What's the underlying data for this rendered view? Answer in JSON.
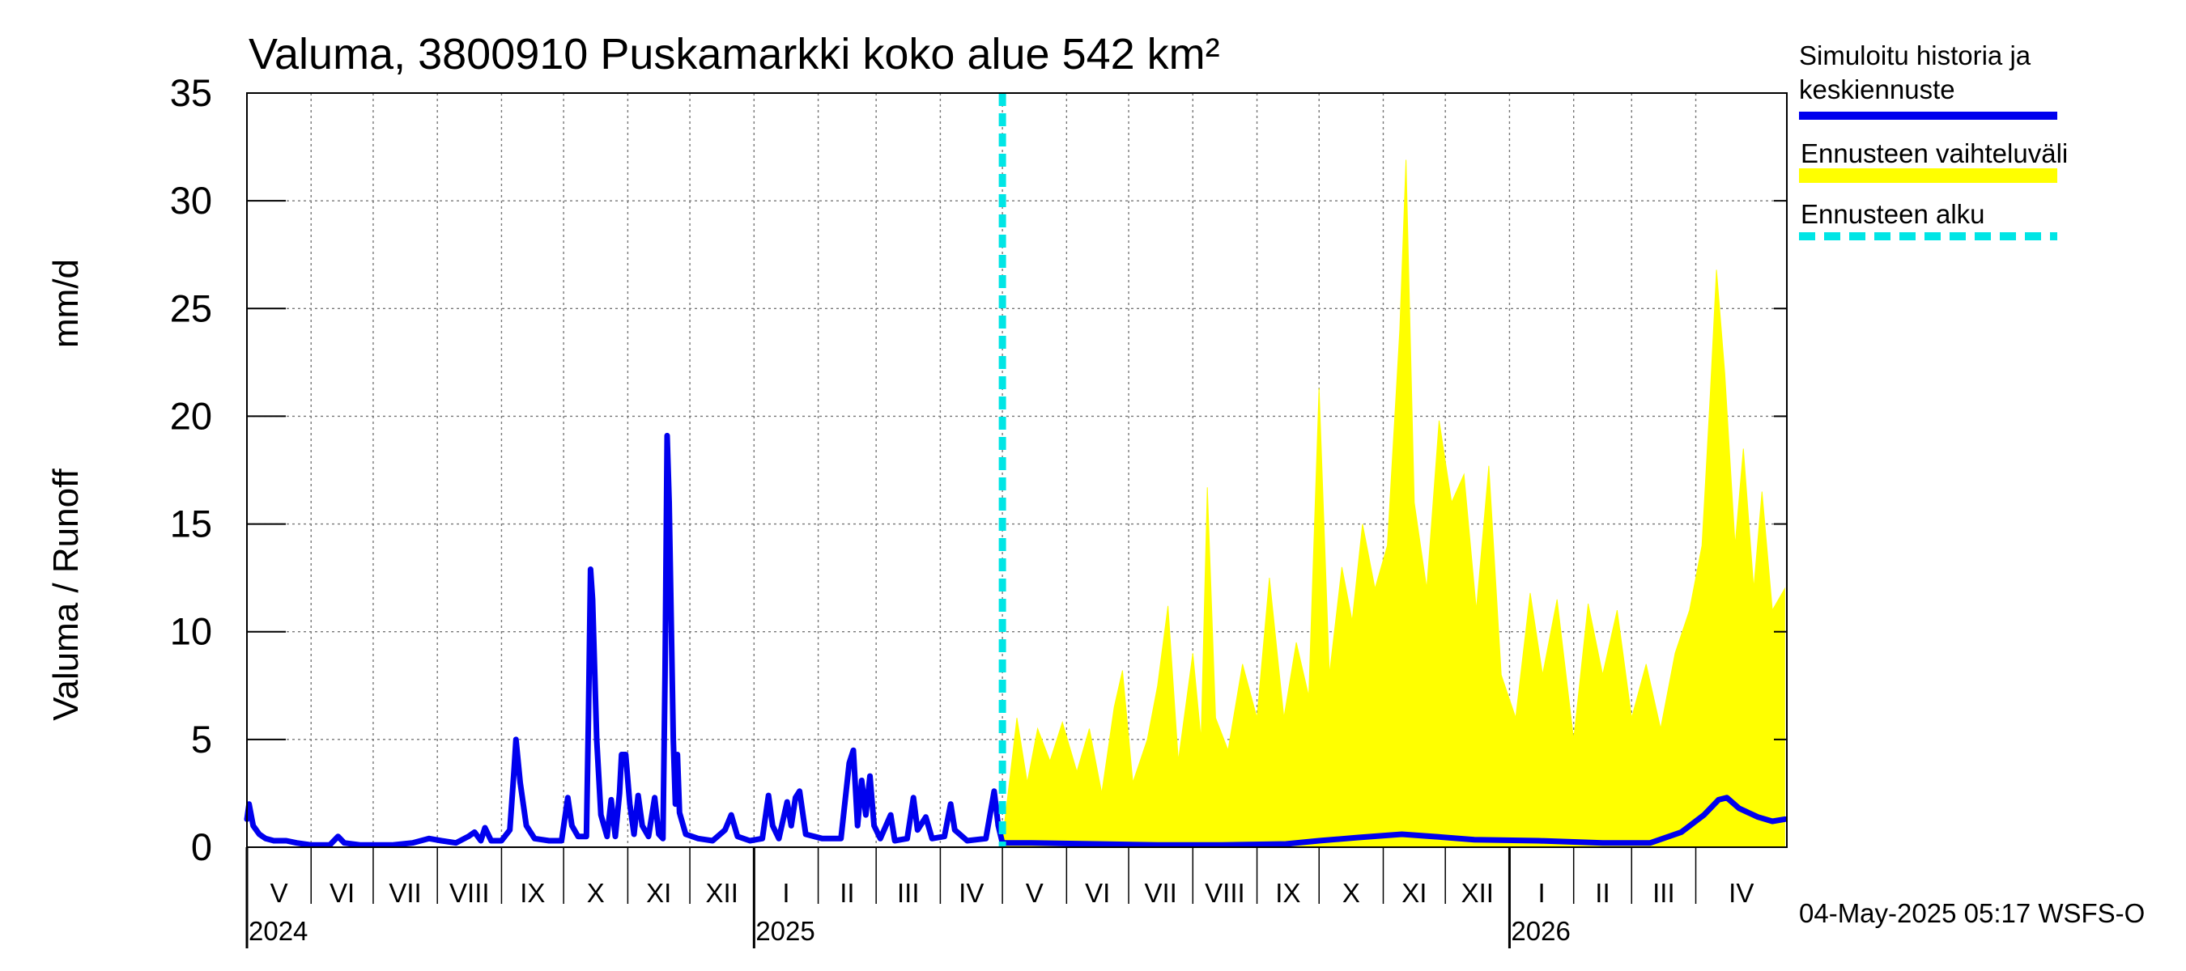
{
  "chart_data": {
    "type": "line",
    "title": "Valuma, 3800910 Puskamarkki koko alue 542 km²",
    "ylabel_fi": "Valuma / Runoff",
    "ylabel_unit": "mm/d",
    "ylim": [
      0,
      35
    ],
    "yticks": [
      0,
      5,
      10,
      15,
      20,
      25,
      30,
      35
    ],
    "xlim": [
      "2024-05-01",
      "2026-05-15"
    ],
    "grid": true,
    "months": [
      {
        "label": "V",
        "start": "2024-05-01"
      },
      {
        "label": "VI",
        "start": "2024-06-01"
      },
      {
        "label": "VII",
        "start": "2024-07-01"
      },
      {
        "label": "VIII",
        "start": "2024-08-01"
      },
      {
        "label": "IX",
        "start": "2024-09-01"
      },
      {
        "label": "X",
        "start": "2024-10-01"
      },
      {
        "label": "XI",
        "start": "2024-11-01"
      },
      {
        "label": "XII",
        "start": "2024-12-01"
      },
      {
        "label": "I",
        "start": "2025-01-01"
      },
      {
        "label": "II",
        "start": "2025-02-01"
      },
      {
        "label": "III",
        "start": "2025-03-01"
      },
      {
        "label": "IV",
        "start": "2025-04-01"
      },
      {
        "label": "V",
        "start": "2025-05-01"
      },
      {
        "label": "VI",
        "start": "2025-06-01"
      },
      {
        "label": "VII",
        "start": "2025-07-01"
      },
      {
        "label": "VIII",
        "start": "2025-08-01"
      },
      {
        "label": "IX",
        "start": "2025-09-01"
      },
      {
        "label": "X",
        "start": "2025-10-01"
      },
      {
        "label": "XI",
        "start": "2025-11-01"
      },
      {
        "label": "XII",
        "start": "2025-12-01"
      },
      {
        "label": "I",
        "start": "2026-01-01"
      },
      {
        "label": "II",
        "start": "2026-02-01"
      },
      {
        "label": "III",
        "start": "2026-03-01"
      },
      {
        "label": "IV",
        "start": "2026-04-01"
      }
    ],
    "years": [
      {
        "label": "2024",
        "date": "2024-05-01"
      },
      {
        "label": "2025",
        "date": "2025-01-01"
      },
      {
        "label": "2026",
        "date": "2026-01-01"
      }
    ],
    "forecast_start": "2025-05-01",
    "legend": {
      "placement": "right",
      "history": "Simuloitu historia ja keskiennuste",
      "range": "Ennusteen vaihteluväli",
      "start": "Ennusteen alku"
    },
    "colors": {
      "history": "#0000ee",
      "range": "#ffff00",
      "start": "#00e5e5"
    },
    "series": [
      {
        "name": "Simuloitu historia ja keskiennuste",
        "points": [
          [
            "2024-05-01",
            1.3
          ],
          [
            "2024-05-02",
            2.0
          ],
          [
            "2024-05-04",
            1.0
          ],
          [
            "2024-05-07",
            0.6
          ],
          [
            "2024-05-10",
            0.4
          ],
          [
            "2024-05-14",
            0.3
          ],
          [
            "2024-05-20",
            0.3
          ],
          [
            "2024-05-25",
            0.2
          ],
          [
            "2024-06-01",
            0.1
          ],
          [
            "2024-06-10",
            0.1
          ],
          [
            "2024-06-14",
            0.5
          ],
          [
            "2024-06-17",
            0.2
          ],
          [
            "2024-06-25",
            0.1
          ],
          [
            "2024-07-10",
            0.1
          ],
          [
            "2024-07-20",
            0.2
          ],
          [
            "2024-07-28",
            0.4
          ],
          [
            "2024-08-03",
            0.3
          ],
          [
            "2024-08-10",
            0.2
          ],
          [
            "2024-08-16",
            0.5
          ],
          [
            "2024-08-19",
            0.7
          ],
          [
            "2024-08-22",
            0.3
          ],
          [
            "2024-08-24",
            0.9
          ],
          [
            "2024-08-27",
            0.3
          ],
          [
            "2024-09-01",
            0.3
          ],
          [
            "2024-09-05",
            0.8
          ],
          [
            "2024-09-07",
            3.5
          ],
          [
            "2024-09-08",
            5.0
          ],
          [
            "2024-09-10",
            3.0
          ],
          [
            "2024-09-13",
            1.0
          ],
          [
            "2024-09-17",
            0.4
          ],
          [
            "2024-09-24",
            0.3
          ],
          [
            "2024-09-30",
            0.3
          ],
          [
            "2024-10-03",
            2.3
          ],
          [
            "2024-10-05",
            1.0
          ],
          [
            "2024-10-08",
            0.5
          ],
          [
            "2024-10-12",
            0.5
          ],
          [
            "2024-10-13",
            6.0
          ],
          [
            "2024-10-14",
            12.9
          ],
          [
            "2024-10-15",
            11.5
          ],
          [
            "2024-10-17",
            5.0
          ],
          [
            "2024-10-19",
            1.5
          ],
          [
            "2024-10-22",
            0.5
          ],
          [
            "2024-10-24",
            2.2
          ],
          [
            "2024-10-26",
            0.5
          ],
          [
            "2024-10-28",
            2.5
          ],
          [
            "2024-10-29",
            4.3
          ],
          [
            "2024-10-31",
            4.3
          ],
          [
            "2024-11-02",
            2.0
          ],
          [
            "2024-11-04",
            0.6
          ],
          [
            "2024-11-06",
            2.4
          ],
          [
            "2024-11-08",
            1.0
          ],
          [
            "2024-11-11",
            0.5
          ],
          [
            "2024-11-14",
            2.3
          ],
          [
            "2024-11-16",
            0.6
          ],
          [
            "2024-11-18",
            0.4
          ],
          [
            "2024-11-19",
            8.0
          ],
          [
            "2024-11-20",
            19.1
          ],
          [
            "2024-11-21",
            16.0
          ],
          [
            "2024-11-23",
            5.0
          ],
          [
            "2024-11-24",
            2.0
          ],
          [
            "2024-11-25",
            4.3
          ],
          [
            "2024-11-26",
            1.6
          ],
          [
            "2024-11-29",
            0.6
          ],
          [
            "2024-12-05",
            0.4
          ],
          [
            "2024-12-12",
            0.3
          ],
          [
            "2024-12-18",
            0.8
          ],
          [
            "2024-12-21",
            1.5
          ],
          [
            "2024-12-24",
            0.5
          ],
          [
            "2024-12-30",
            0.3
          ],
          [
            "2025-01-05",
            0.4
          ],
          [
            "2025-01-08",
            2.4
          ],
          [
            "2025-01-10",
            1.0
          ],
          [
            "2025-01-13",
            0.4
          ],
          [
            "2025-01-17",
            2.1
          ],
          [
            "2025-01-19",
            1.0
          ],
          [
            "2025-01-21",
            2.3
          ],
          [
            "2025-01-23",
            2.6
          ],
          [
            "2025-01-26",
            0.6
          ],
          [
            "2025-02-03",
            0.4
          ],
          [
            "2025-02-12",
            0.4
          ],
          [
            "2025-02-16",
            3.9
          ],
          [
            "2025-02-18",
            4.5
          ],
          [
            "2025-02-20",
            1.0
          ],
          [
            "2025-02-22",
            3.1
          ],
          [
            "2025-02-24",
            1.5
          ],
          [
            "2025-02-26",
            3.3
          ],
          [
            "2025-02-28",
            1.0
          ],
          [
            "2025-03-03",
            0.4
          ],
          [
            "2025-03-08",
            1.5
          ],
          [
            "2025-03-10",
            0.3
          ],
          [
            "2025-03-16",
            0.4
          ],
          [
            "2025-03-19",
            2.3
          ],
          [
            "2025-03-21",
            0.8
          ],
          [
            "2025-03-25",
            1.4
          ],
          [
            "2025-03-28",
            0.4
          ],
          [
            "2025-04-03",
            0.5
          ],
          [
            "2025-04-06",
            2.0
          ],
          [
            "2025-04-08",
            0.8
          ],
          [
            "2025-04-14",
            0.3
          ],
          [
            "2025-04-23",
            0.4
          ],
          [
            "2025-04-27",
            2.6
          ],
          [
            "2025-04-29",
            1.0
          ],
          [
            "2025-05-01",
            0.2
          ],
          [
            "2025-05-15",
            0.2
          ],
          [
            "2025-06-15",
            0.15
          ],
          [
            "2025-07-15",
            0.1
          ],
          [
            "2025-08-15",
            0.1
          ],
          [
            "2025-09-15",
            0.15
          ],
          [
            "2025-10-01",
            0.3
          ],
          [
            "2025-10-20",
            0.45
          ],
          [
            "2025-11-10",
            0.6
          ],
          [
            "2025-11-25",
            0.5
          ],
          [
            "2025-12-15",
            0.35
          ],
          [
            "2026-01-15",
            0.3
          ],
          [
            "2026-02-15",
            0.2
          ],
          [
            "2026-03-10",
            0.2
          ],
          [
            "2026-03-25",
            0.7
          ],
          [
            "2026-04-05",
            1.5
          ],
          [
            "2026-04-12",
            2.2
          ],
          [
            "2026-04-16",
            2.3
          ],
          [
            "2026-04-22",
            1.8
          ],
          [
            "2026-05-01",
            1.4
          ],
          [
            "2026-05-08",
            1.2
          ],
          [
            "2026-05-14",
            1.3
          ]
        ]
      },
      {
        "name": "Ennusteen vaihteluväli",
        "upper_points": [
          [
            "2025-05-01",
            0.3
          ],
          [
            "2025-05-05",
            3.5
          ],
          [
            "2025-05-08",
            6.0
          ],
          [
            "2025-05-13",
            3.0
          ],
          [
            "2025-05-18",
            5.5
          ],
          [
            "2025-05-24",
            4.0
          ],
          [
            "2025-05-30",
            5.8
          ],
          [
            "2025-06-06",
            3.5
          ],
          [
            "2025-06-12",
            5.5
          ],
          [
            "2025-06-18",
            2.5
          ],
          [
            "2025-06-24",
            6.5
          ],
          [
            "2025-06-28",
            8.2
          ],
          [
            "2025-07-03",
            3.0
          ],
          [
            "2025-07-10",
            5.0
          ],
          [
            "2025-07-15",
            7.5
          ],
          [
            "2025-07-20",
            11.2
          ],
          [
            "2025-07-25",
            4.0
          ],
          [
            "2025-08-01",
            9.0
          ],
          [
            "2025-08-05",
            5.0
          ],
          [
            "2025-08-08",
            16.7
          ],
          [
            "2025-08-12",
            6.0
          ],
          [
            "2025-08-18",
            4.5
          ],
          [
            "2025-08-25",
            8.5
          ],
          [
            "2025-09-01",
            6.0
          ],
          [
            "2025-09-07",
            12.5
          ],
          [
            "2025-09-14",
            6.0
          ],
          [
            "2025-09-20",
            9.5
          ],
          [
            "2025-09-26",
            7.0
          ],
          [
            "2025-10-01",
            21.3
          ],
          [
            "2025-10-06",
            8.0
          ],
          [
            "2025-10-12",
            13.0
          ],
          [
            "2025-10-17",
            10.5
          ],
          [
            "2025-10-22",
            15.0
          ],
          [
            "2025-10-28",
            12.0
          ],
          [
            "2025-11-03",
            14.0
          ],
          [
            "2025-11-09",
            24.0
          ],
          [
            "2025-11-12",
            31.9
          ],
          [
            "2025-11-16",
            16.0
          ],
          [
            "2025-11-22",
            12.0
          ],
          [
            "2025-11-28",
            19.8
          ],
          [
            "2025-12-04",
            16.0
          ],
          [
            "2025-12-10",
            17.3
          ],
          [
            "2025-12-16",
            11.0
          ],
          [
            "2025-12-22",
            17.7
          ],
          [
            "2025-12-28",
            8.0
          ],
          [
            "2026-01-04",
            6.0
          ],
          [
            "2026-01-11",
            11.8
          ],
          [
            "2026-01-17",
            8.0
          ],
          [
            "2026-01-24",
            11.5
          ],
          [
            "2026-02-01",
            5.0
          ],
          [
            "2026-02-08",
            11.3
          ],
          [
            "2026-02-15",
            8.0
          ],
          [
            "2026-02-22",
            11.0
          ],
          [
            "2026-03-01",
            6.0
          ],
          [
            "2026-03-08",
            8.5
          ],
          [
            "2026-03-15",
            5.5
          ],
          [
            "2026-03-22",
            9.0
          ],
          [
            "2026-03-29",
            11.0
          ],
          [
            "2026-04-04",
            14.0
          ],
          [
            "2026-04-08",
            21.0
          ],
          [
            "2026-04-11",
            26.8
          ],
          [
            "2026-04-15",
            22.0
          ],
          [
            "2026-04-20",
            14.0
          ],
          [
            "2026-04-24",
            18.5
          ],
          [
            "2026-04-29",
            12.0
          ],
          [
            "2026-05-03",
            16.5
          ],
          [
            "2026-05-08",
            11.0
          ],
          [
            "2026-05-14",
            12.0
          ]
        ],
        "lower": 0
      }
    ]
  },
  "footer": {
    "timestamp": "04-May-2025 05:17 WSFS-O"
  }
}
